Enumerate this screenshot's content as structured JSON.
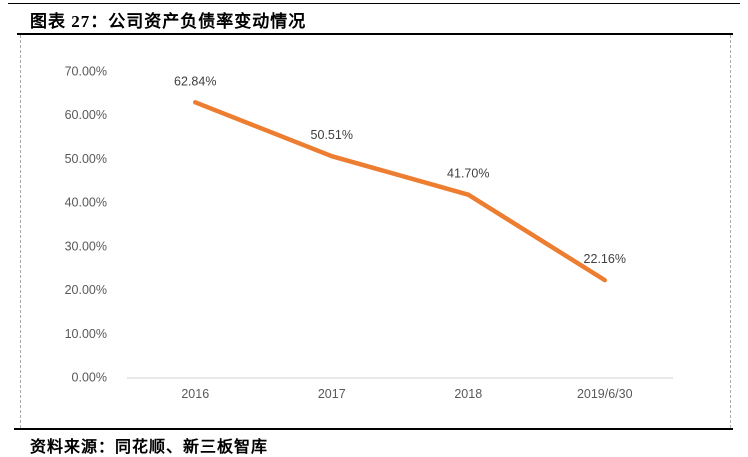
{
  "header": {
    "title": "图表 27：公司资产负债率变动情况"
  },
  "footer": {
    "source": "资料来源：同花顺、新三板智库"
  },
  "colors": {
    "line": "#ED7D31",
    "axis_line": "#D9D9D9",
    "tick_text": "#595959",
    "data_label_text": "#404040",
    "rule": "#000000",
    "dashed_border": "#ABABAB"
  },
  "chart_data": {
    "type": "line",
    "title": "公司资产负债率变动情况",
    "categories": [
      "2016",
      "2017",
      "2018",
      "2019/6/30"
    ],
    "values": [
      62.84,
      50.51,
      41.7,
      22.16
    ],
    "data_labels": [
      "62.84%",
      "50.51%",
      "41.70%",
      "22.16%"
    ],
    "y_tick_labels": [
      "0.00%",
      "10.00%",
      "20.00%",
      "30.00%",
      "40.00%",
      "50.00%",
      "60.00%",
      "70.00%"
    ],
    "y_tick_step": 10,
    "ylim": [
      0,
      70
    ],
    "xlabel": "",
    "ylabel": "",
    "grid": false,
    "legend": "none",
    "line_color": "#ED7D31"
  }
}
